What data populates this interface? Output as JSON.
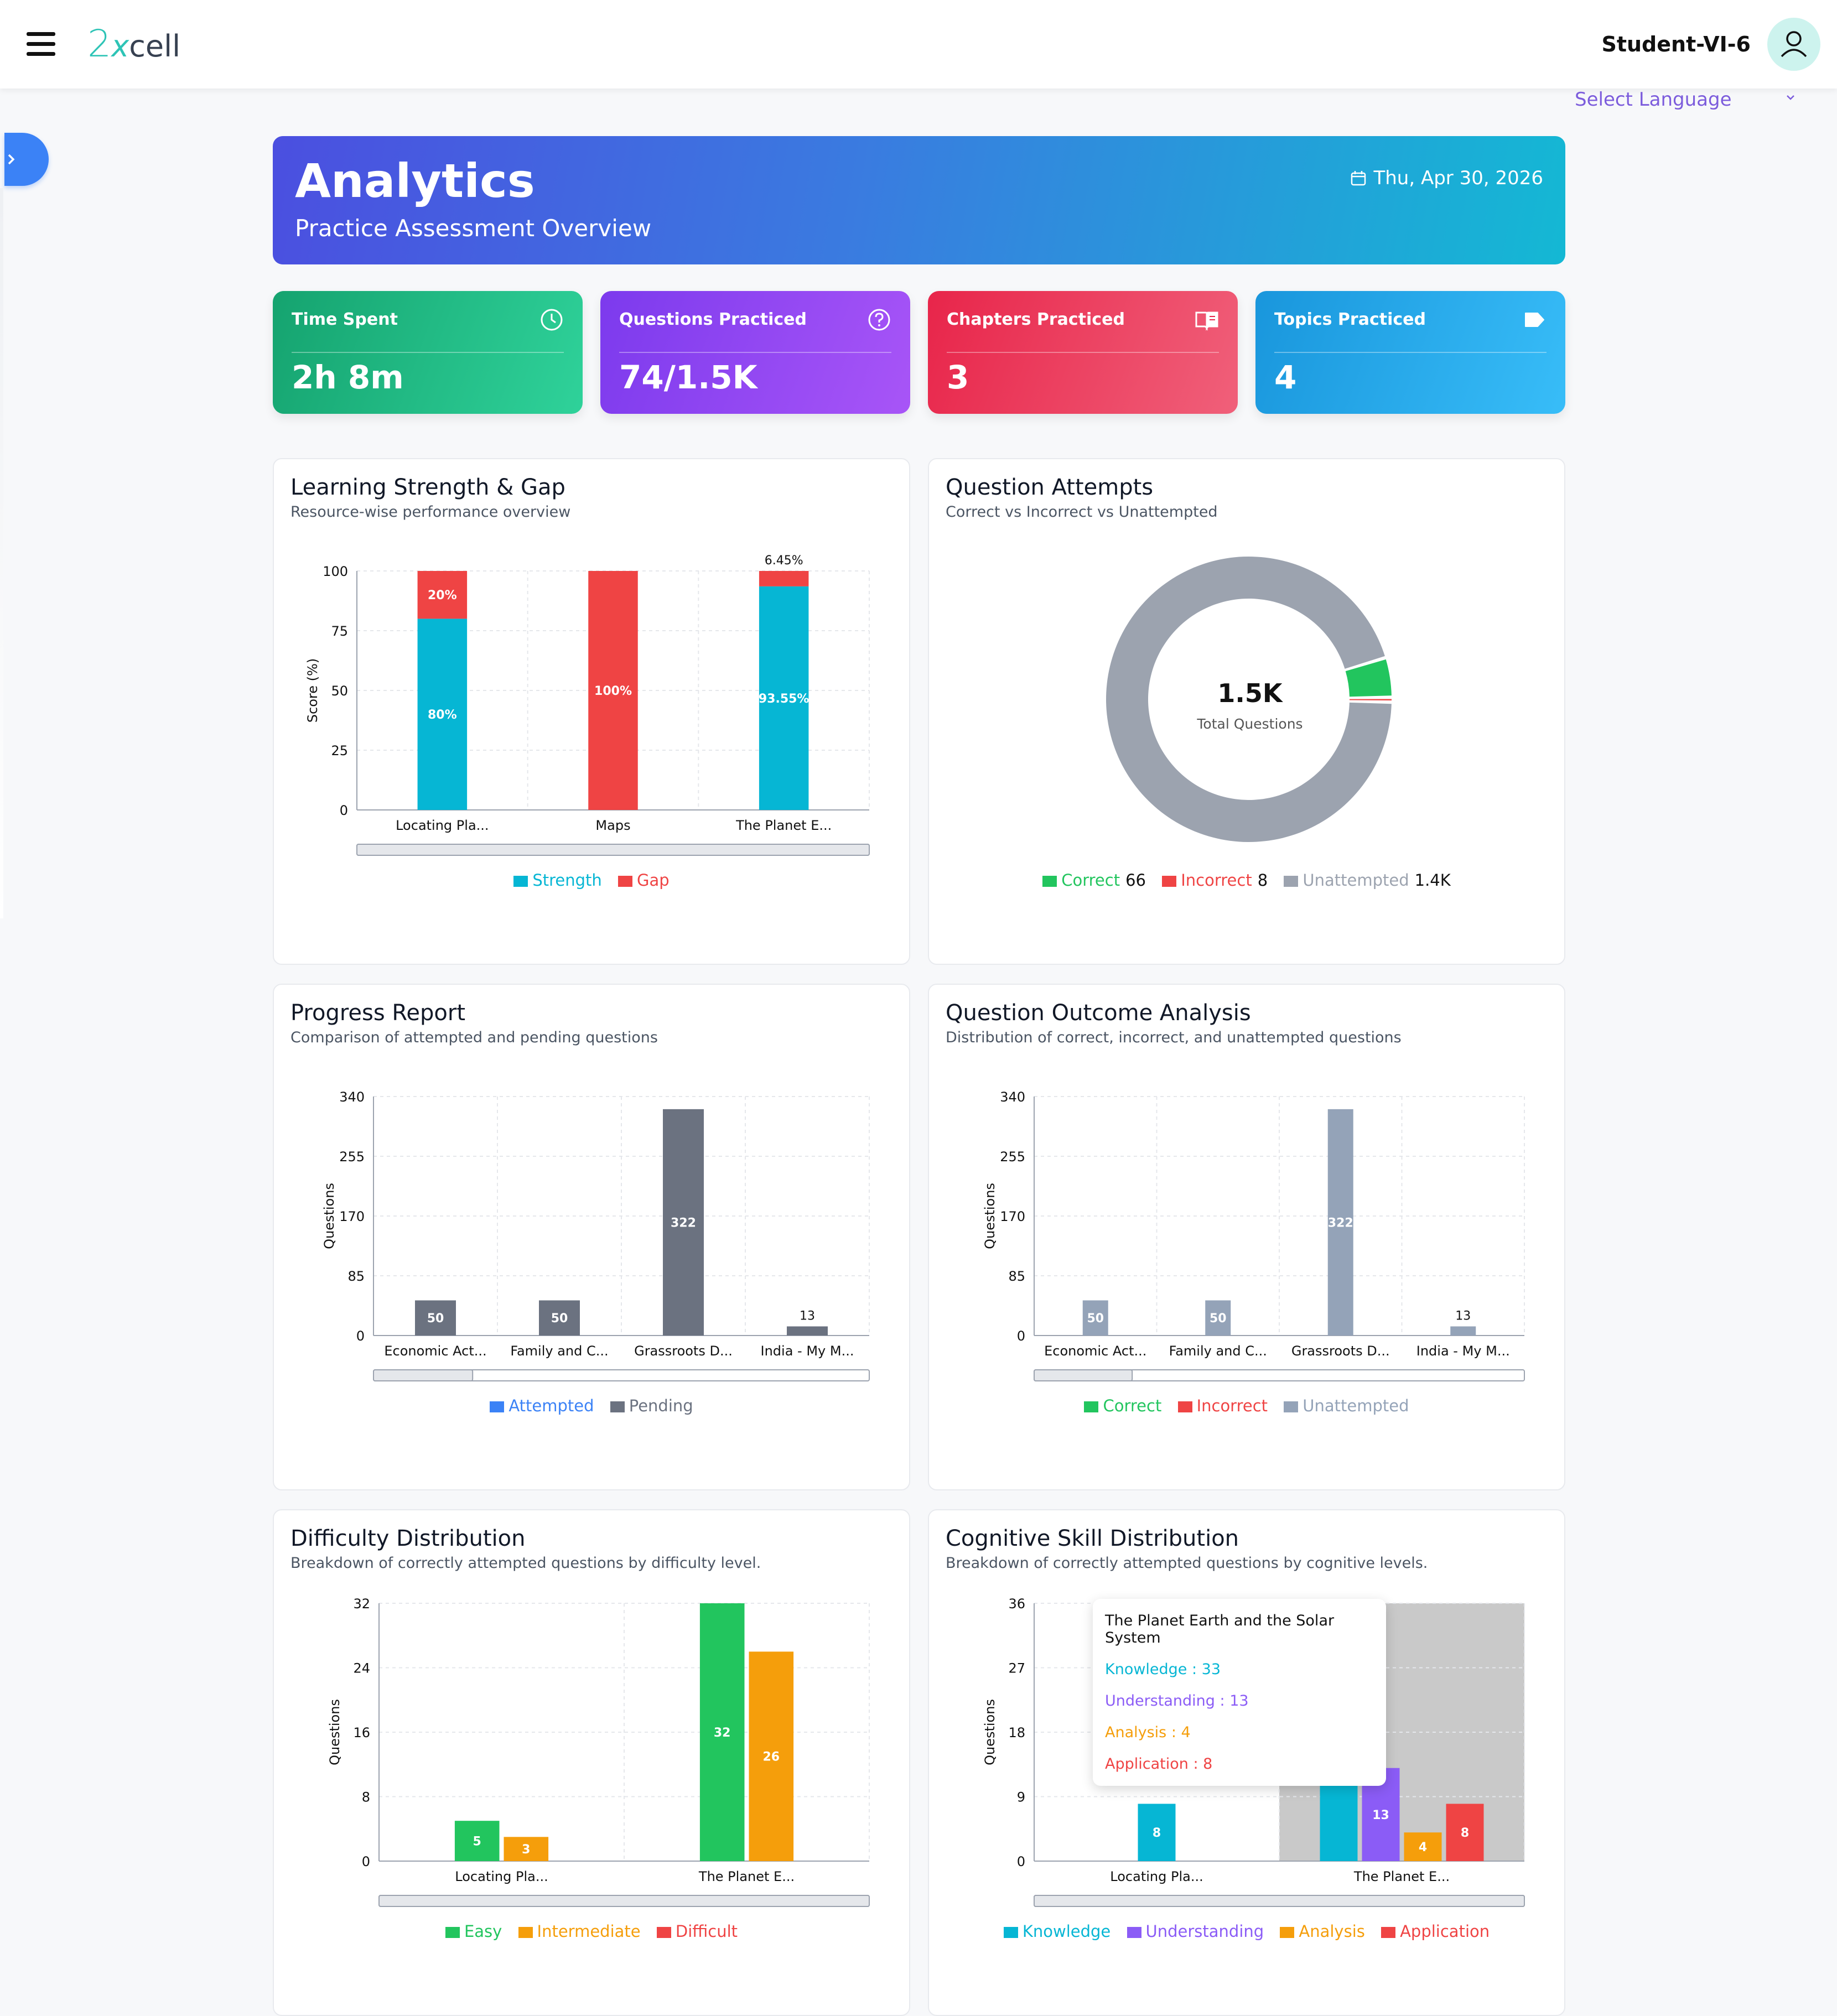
{
  "app": {
    "logo_num": "2",
    "logo_x": "x",
    "logo_cell": "cell",
    "user": "Student-VI-6",
    "language_placeholder": "Select Language"
  },
  "header": {
    "title": "Analytics",
    "subtitle": "Practice Assessment Overview",
    "date": "Thu, Apr 30, 2026"
  },
  "stats": [
    {
      "label": "Time Spent",
      "value": "2h 8m",
      "icon": "clock-icon"
    },
    {
      "label": "Questions Practiced",
      "value": "74/1.5K",
      "icon": "question-circle-icon"
    },
    {
      "label": "Chapters Practiced",
      "value": "3",
      "icon": "book-icon"
    },
    {
      "label": "Topics Practiced",
      "value": "4",
      "icon": "tag-icon"
    }
  ],
  "panels": {
    "strength": {
      "title": "Learning Strength & Gap",
      "subtitle": "Resource-wise performance overview"
    },
    "attempts": {
      "title": "Question Attempts",
      "subtitle": "Correct vs Incorrect vs Unattempted"
    },
    "progress": {
      "title": "Progress Report",
      "subtitle": "Comparison of attempted and pending questions"
    },
    "outcome": {
      "title": "Question Outcome Analysis",
      "subtitle": "Distribution of correct, incorrect, and unattempted questions"
    },
    "difficulty": {
      "title": "Difficulty Distribution",
      "subtitle": "Breakdown of correctly attempted questions by difficulty level."
    },
    "cognitive": {
      "title": "Cognitive Skill Distribution",
      "subtitle": "Breakdown of correctly attempted questions by cognitive levels."
    }
  },
  "chart_data": [
    {
      "id": "strength",
      "type": "bar",
      "stacked": true,
      "categories": [
        "Locating Pla...",
        "Maps",
        "The Planet E..."
      ],
      "series": [
        {
          "name": "Strength",
          "values": [
            80,
            0,
            93.55
          ],
          "labels": [
            "80%",
            "",
            "93.55%"
          ],
          "color": "#06b6d4"
        },
        {
          "name": "Gap",
          "values": [
            20,
            100,
            6.45
          ],
          "labels": [
            "20%",
            "100%",
            "6.45%"
          ],
          "color": "#ef4444"
        }
      ],
      "ylabel": "Score (%)",
      "ylim": [
        0,
        100
      ],
      "yticks": [
        "0",
        "25",
        "50",
        "75",
        "100"
      ],
      "legend_position": "bottom"
    },
    {
      "id": "attempts",
      "type": "pie",
      "series": [
        {
          "name": "Correct",
          "value": 66,
          "label": "66",
          "color": "#22c55e"
        },
        {
          "name": "Incorrect",
          "value": 8,
          "label": "8",
          "color": "#ef4444"
        },
        {
          "name": "Unattempted",
          "value": 1400,
          "label": "1.4K",
          "color": "#9ca3af"
        }
      ],
      "center_value": "1.5K",
      "center_label": "Total Questions",
      "legend_position": "bottom"
    },
    {
      "id": "progress",
      "type": "bar",
      "categories": [
        "Economic Act...",
        "Family and C...",
        "Grassroots D...",
        "India - My M..."
      ],
      "series": [
        {
          "name": "Attempted",
          "values": [
            0,
            0,
            0,
            0
          ],
          "color": "#3b82f6"
        },
        {
          "name": "Pending",
          "values": [
            50,
            50,
            322,
            13
          ],
          "color": "#6b7280"
        }
      ],
      "ylabel": "Questions",
      "ylim": [
        0,
        340
      ],
      "yticks": [
        "0",
        "85",
        "170",
        "255",
        "340"
      ],
      "legend_position": "bottom"
    },
    {
      "id": "outcome",
      "type": "bar",
      "categories": [
        "Economic Act...",
        "Family and C...",
        "Grassroots D...",
        "India - My M..."
      ],
      "series": [
        {
          "name": "Correct",
          "values": [
            0,
            0,
            0,
            0
          ],
          "color": "#22c55e"
        },
        {
          "name": "Incorrect",
          "values": [
            0,
            0,
            0,
            0
          ],
          "color": "#ef4444"
        },
        {
          "name": "Unattempted",
          "values": [
            50,
            50,
            322,
            13
          ],
          "color": "#94a3b8"
        }
      ],
      "ylabel": "Questions",
      "ylim": [
        0,
        340
      ],
      "yticks": [
        "0",
        "85",
        "170",
        "255",
        "340"
      ],
      "legend_position": "bottom"
    },
    {
      "id": "difficulty",
      "type": "bar",
      "categories": [
        "Locating Pla...",
        "The Planet E..."
      ],
      "series": [
        {
          "name": "Easy",
          "values": [
            5,
            32
          ],
          "color": "#22c55e"
        },
        {
          "name": "Intermediate",
          "values": [
            3,
            26
          ],
          "color": "#f59e0b"
        },
        {
          "name": "Difficult",
          "values": [
            0,
            0
          ],
          "color": "#ef4444"
        }
      ],
      "ylabel": "Questions",
      "ylim": [
        0,
        32
      ],
      "yticks": [
        "0",
        "8",
        "16",
        "24",
        "32"
      ],
      "legend_position": "bottom"
    },
    {
      "id": "cognitive",
      "type": "bar",
      "categories": [
        "Locating Pla...",
        "The Planet E..."
      ],
      "series": [
        {
          "name": "Knowledge",
          "values": [
            8,
            33
          ],
          "color": "#06b6d4"
        },
        {
          "name": "Understanding",
          "values": [
            0,
            13
          ],
          "color": "#8b5cf6"
        },
        {
          "name": "Analysis",
          "values": [
            0,
            4
          ],
          "color": "#f59e0b"
        },
        {
          "name": "Application",
          "values": [
            0,
            8
          ],
          "color": "#ef4444"
        }
      ],
      "ylabel": "Questions",
      "ylim": [
        0,
        36
      ],
      "yticks": [
        "0",
        "9",
        "18",
        "27",
        "36"
      ],
      "legend_position": "bottom",
      "highlighted_category": "The Planet E...",
      "tooltip": {
        "title": "The Planet Earth and the Solar System",
        "lines": [
          "Knowledge : 33",
          "Understanding : 13",
          "Analysis : 4",
          "Application : 8"
        ]
      }
    }
  ]
}
